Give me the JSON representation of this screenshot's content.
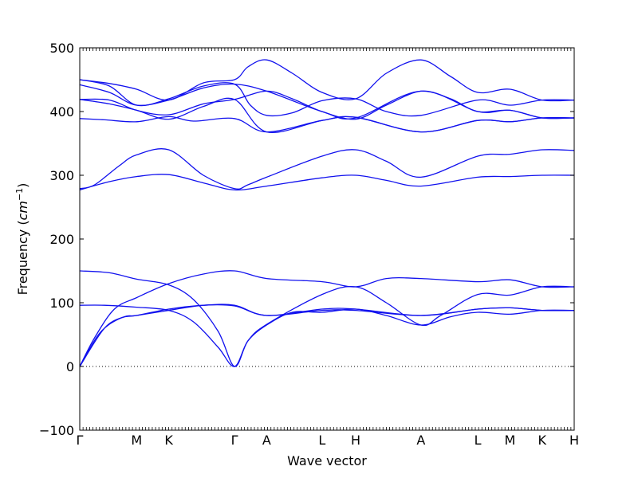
{
  "chart_data": {
    "type": "line",
    "title": "",
    "xlabel": "Wave vector",
    "ylabel": "Frequency",
    "ylabel_unit": "cm",
    "ylabel_unit_exp": "−1",
    "ylim": [
      -100,
      500
    ],
    "y_ticks": [
      "500",
      "400",
      "300",
      "200",
      "100",
      "0",
      "−100"
    ],
    "y_tick_values": [
      500,
      400,
      300,
      200,
      100,
      0,
      -100
    ],
    "xlim": [
      0,
      10
    ],
    "x_ticks": [
      {
        "label": "Γ",
        "x": 0
      },
      {
        "label": "M",
        "x": 1.15
      },
      {
        "label": "K",
        "x": 1.8
      },
      {
        "label": "Γ",
        "x": 3.13
      },
      {
        "label": "A",
        "x": 3.78
      },
      {
        "label": "L",
        "x": 4.9
      },
      {
        "label": "H",
        "x": 5.58
      },
      {
        "label": "A",
        "x": 6.9
      },
      {
        "label": "L",
        "x": 8.05
      },
      {
        "label": "M",
        "x": 8.7
      },
      {
        "label": "K",
        "x": 9.35
      },
      {
        "label": "H",
        "x": 10
      }
    ],
    "zero_line": true,
    "line_color": "#1111ee",
    "series": [
      {
        "values": [
          [
            0,
            0
          ],
          [
            0.3,
            45
          ],
          [
            0.7,
            90
          ],
          [
            1.15,
            108
          ],
          [
            1.8,
            130
          ],
          [
            2.5,
            145
          ],
          [
            3.13,
            150
          ],
          [
            3.78,
            138
          ],
          [
            4.9,
            133
          ],
          [
            5.58,
            125
          ],
          [
            6.2,
            138
          ],
          [
            6.9,
            138
          ],
          [
            8.05,
            133
          ],
          [
            8.7,
            136
          ],
          [
            9.35,
            125
          ],
          [
            10,
            125
          ]
        ]
      },
      {
        "values": [
          [
            0,
            0
          ],
          [
            0.4,
            52
          ],
          [
            0.8,
            75
          ],
          [
            1.15,
            80
          ],
          [
            1.8,
            88
          ],
          [
            2.5,
            96
          ],
          [
            3.13,
            95
          ],
          [
            3.78,
            80
          ],
          [
            4.9,
            88
          ],
          [
            5.58,
            88
          ],
          [
            6.9,
            80
          ],
          [
            8.05,
            90
          ],
          [
            8.7,
            92
          ],
          [
            9.35,
            88
          ],
          [
            10,
            88
          ]
        ]
      },
      {
        "values": [
          [
            0,
            0
          ],
          [
            0.5,
            60
          ],
          [
            0.9,
            78
          ],
          [
            1.15,
            80
          ],
          [
            1.8,
            90
          ],
          [
            2.5,
            96
          ],
          [
            3.13,
            96
          ],
          [
            3.78,
            80
          ],
          [
            4.9,
            90
          ],
          [
            5.58,
            90
          ],
          [
            6.9,
            80
          ],
          [
            8.05,
            90
          ],
          [
            8.7,
            92
          ],
          [
            9.35,
            88
          ],
          [
            10,
            88
          ]
        ]
      },
      {
        "values": [
          [
            0,
            96
          ],
          [
            0.5,
            96
          ],
          [
            1.15,
            93
          ],
          [
            1.8,
            88
          ],
          [
            2.3,
            70
          ],
          [
            2.8,
            30
          ],
          [
            3.13,
            0
          ],
          [
            3.4,
            40
          ],
          [
            3.78,
            65
          ],
          [
            4.3,
            85
          ],
          [
            4.9,
            85
          ],
          [
            5.58,
            90
          ],
          [
            6.2,
            80
          ],
          [
            6.9,
            65
          ],
          [
            7.5,
            78
          ],
          [
            8.05,
            85
          ],
          [
            8.7,
            82
          ],
          [
            9.35,
            88
          ],
          [
            10,
            88
          ]
        ]
      },
      {
        "values": [
          [
            0,
            150
          ],
          [
            0.6,
            147
          ],
          [
            1.15,
            137
          ],
          [
            1.8,
            128
          ],
          [
            2.3,
            105
          ],
          [
            2.8,
            55
          ],
          [
            3.13,
            0
          ],
          [
            3.4,
            40
          ],
          [
            3.78,
            66
          ],
          [
            4.9,
            113
          ],
          [
            5.58,
            125
          ],
          [
            6.2,
            100
          ],
          [
            6.9,
            65
          ],
          [
            7.3,
            80
          ],
          [
            8.05,
            113
          ],
          [
            8.7,
            112
          ],
          [
            9.35,
            125
          ],
          [
            10,
            125
          ]
        ]
      },
      {
        "values": [
          [
            0,
            277
          ],
          [
            0.6,
            290
          ],
          [
            1.15,
            298
          ],
          [
            1.8,
            301
          ],
          [
            2.5,
            288
          ],
          [
            3.13,
            277
          ],
          [
            3.78,
            283
          ],
          [
            4.9,
            296
          ],
          [
            5.58,
            300
          ],
          [
            6.2,
            292
          ],
          [
            6.9,
            283
          ],
          [
            8.05,
            297
          ],
          [
            8.7,
            298
          ],
          [
            9.35,
            300
          ],
          [
            10,
            300
          ]
        ]
      },
      {
        "values": [
          [
            0,
            279
          ],
          [
            0.3,
            285
          ],
          [
            0.8,
            315
          ],
          [
            1.15,
            332
          ],
          [
            1.8,
            340
          ],
          [
            2.5,
            300
          ],
          [
            3.13,
            279
          ],
          [
            3.4,
            285
          ],
          [
            3.78,
            297
          ],
          [
            4.9,
            330
          ],
          [
            5.58,
            340
          ],
          [
            6.2,
            322
          ],
          [
            6.9,
            297
          ],
          [
            8.05,
            330
          ],
          [
            8.7,
            333
          ],
          [
            9.35,
            340
          ],
          [
            10,
            339
          ]
        ]
      },
      {
        "values": [
          [
            0,
            389
          ],
          [
            0.5,
            387
          ],
          [
            1.15,
            384
          ],
          [
            1.8,
            392
          ],
          [
            2.3,
            385
          ],
          [
            3.13,
            389
          ],
          [
            3.78,
            368
          ],
          [
            4.9,
            386
          ],
          [
            5.58,
            391
          ],
          [
            6.9,
            368
          ],
          [
            8.05,
            386
          ],
          [
            8.7,
            384
          ],
          [
            9.35,
            390
          ],
          [
            10,
            390
          ]
        ]
      },
      {
        "values": [
          [
            0,
            419
          ],
          [
            0.6,
            412
          ],
          [
            1.15,
            402
          ],
          [
            1.8,
            388
          ],
          [
            2.5,
            408
          ],
          [
            3.13,
            419
          ],
          [
            3.78,
            368
          ],
          [
            4.9,
            386
          ],
          [
            5.58,
            391
          ],
          [
            6.9,
            368
          ],
          [
            8.05,
            386
          ],
          [
            8.7,
            384
          ],
          [
            9.35,
            390
          ],
          [
            10,
            390
          ]
        ]
      },
      {
        "values": [
          [
            0,
            442
          ],
          [
            0.6,
            430
          ],
          [
            1.15,
            410
          ],
          [
            1.8,
            418
          ],
          [
            2.5,
            437
          ],
          [
            3.13,
            443
          ],
          [
            3.78,
            432
          ],
          [
            4.9,
            400
          ],
          [
            5.58,
            390
          ],
          [
            6.9,
            432
          ],
          [
            8.05,
            400
          ],
          [
            8.7,
            402
          ],
          [
            9.35,
            390
          ],
          [
            10,
            390
          ]
        ]
      },
      {
        "values": [
          [
            0,
            450
          ],
          [
            0.6,
            444
          ],
          [
            1.15,
            435
          ],
          [
            1.8,
            418
          ],
          [
            2.5,
            445
          ],
          [
            3.13,
            450
          ],
          [
            3.4,
            470
          ],
          [
            3.78,
            481
          ],
          [
            4.3,
            460
          ],
          [
            4.9,
            430
          ],
          [
            5.58,
            420
          ],
          [
            6.2,
            460
          ],
          [
            6.9,
            481
          ],
          [
            7.5,
            455
          ],
          [
            8.05,
            430
          ],
          [
            8.7,
            435
          ],
          [
            9.35,
            418
          ],
          [
            10,
            418
          ]
        ]
      },
      {
        "values": [
          [
            0,
            450
          ],
          [
            0.6,
            440
          ],
          [
            1.15,
            410
          ],
          [
            1.8,
            420
          ],
          [
            2.5,
            440
          ],
          [
            3.13,
            443
          ],
          [
            3.45,
            410
          ],
          [
            3.78,
            394
          ],
          [
            4.3,
            398
          ],
          [
            4.9,
            417
          ],
          [
            5.58,
            420
          ],
          [
            6.2,
            400
          ],
          [
            6.9,
            394
          ],
          [
            8.05,
            418
          ],
          [
            8.7,
            410
          ],
          [
            9.35,
            418
          ],
          [
            10,
            418
          ]
        ]
      },
      {
        "values": [
          [
            0,
            419
          ],
          [
            0.6,
            418
          ],
          [
            1.15,
            402
          ],
          [
            1.8,
            395
          ],
          [
            2.5,
            412
          ],
          [
            3.13,
            419
          ],
          [
            3.78,
            432
          ],
          [
            4.3,
            420
          ],
          [
            4.9,
            400
          ],
          [
            5.58,
            388
          ],
          [
            6.2,
            410
          ],
          [
            6.9,
            432
          ],
          [
            7.5,
            420
          ],
          [
            8.05,
            400
          ],
          [
            8.7,
            402
          ],
          [
            9.35,
            390
          ],
          [
            10,
            390
          ]
        ]
      }
    ]
  }
}
